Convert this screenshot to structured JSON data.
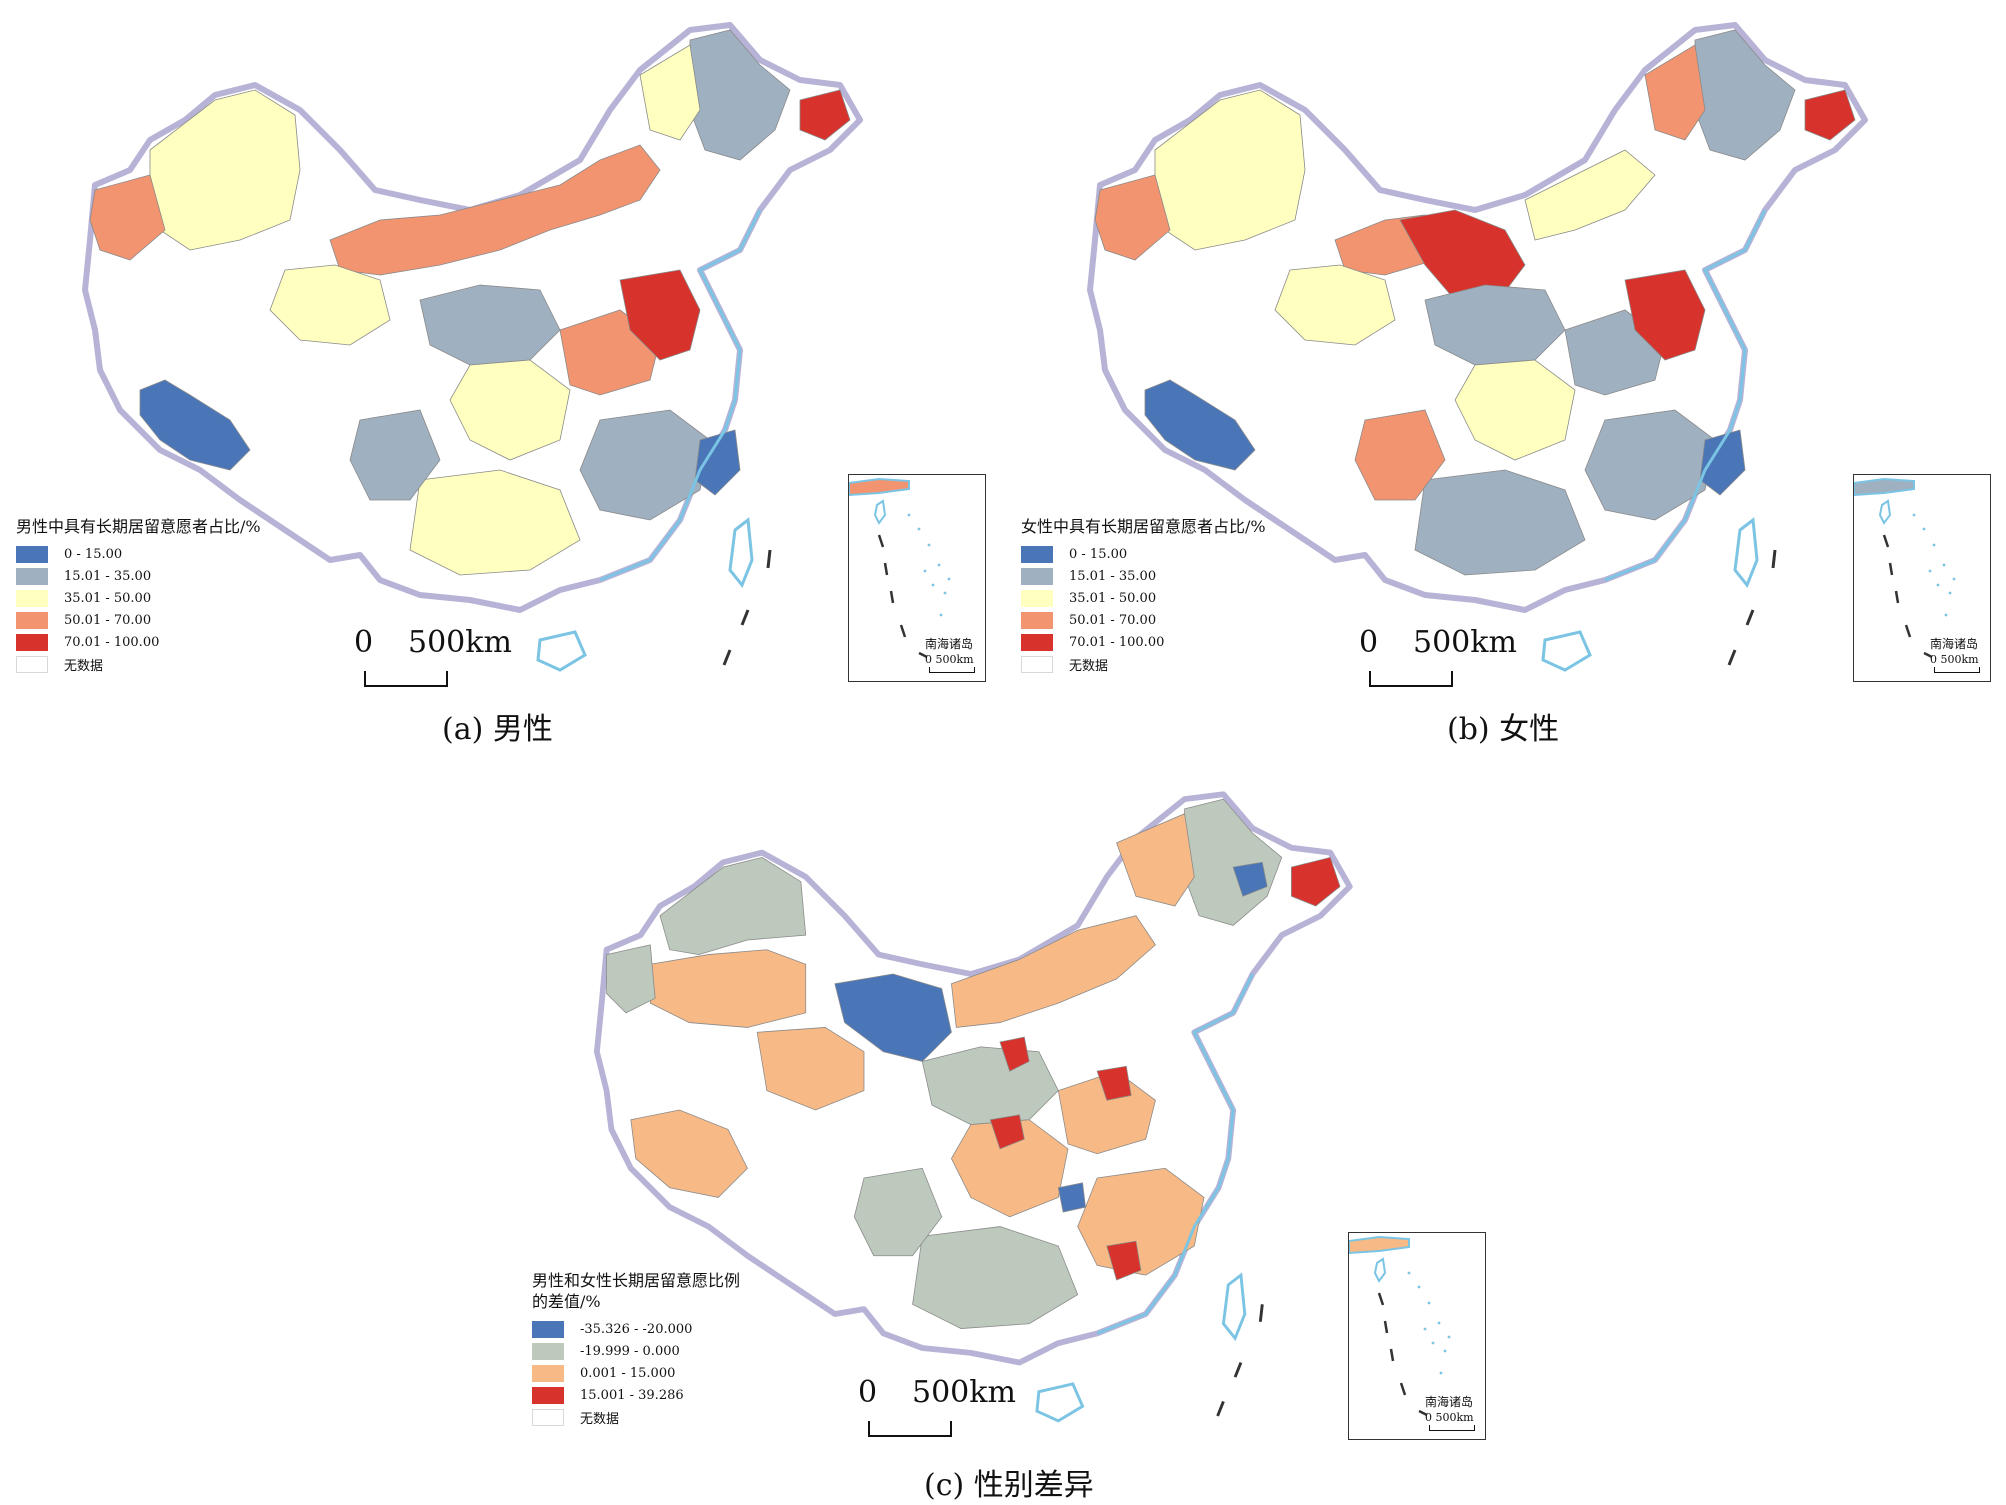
{
  "colors": {
    "male_female": [
      "#4a76b8",
      "#9fb0c1",
      "#ffffc0",
      "#f29470",
      "#d7322b"
    ],
    "difference": [
      "#4a76b8",
      "#bcc9bc",
      "#f7b985",
      "#d7322b"
    ],
    "nodata": "#ffffff",
    "coast": "#7bc4e4",
    "outline": "#b7b3d6"
  },
  "panel_a": {
    "legend_title": "男性中具有长期居留意愿者占比/%",
    "legend": [
      "0 - 15.00",
      "15.01 - 35.00",
      "35.01 - 50.00",
      "50.01 - 70.00",
      "70.01 - 100.00",
      "无数据"
    ],
    "scale_zero": "0",
    "scale_km": "500km",
    "inset_label": "南海诸岛",
    "inset_scale": "0    500km",
    "caption": "(a) 男性"
  },
  "panel_b": {
    "legend_title": "女性中具有长期居留意愿者占比/%",
    "legend": [
      "0 - 15.00",
      "15.01 - 35.00",
      "35.01 - 50.00",
      "50.01 - 70.00",
      "70.01 - 100.00",
      "无数据"
    ],
    "scale_zero": "0",
    "scale_km": "500km",
    "inset_label": "南海诸岛",
    "inset_scale": "0    500km",
    "caption": "(b) 女性"
  },
  "panel_c": {
    "legend_title": "男性和女性长期居留意愿比例\n的差值/%",
    "legend": [
      "-35.326 - -20.000",
      "-19.999 - 0.000",
      "0.001 - 15.000",
      "15.001 - 39.286",
      "无数据"
    ],
    "scale_zero": "0",
    "scale_km": "500km",
    "inset_label": "南海诸岛",
    "inset_scale": "0    500km",
    "caption": "(c) 性别差异"
  }
}
